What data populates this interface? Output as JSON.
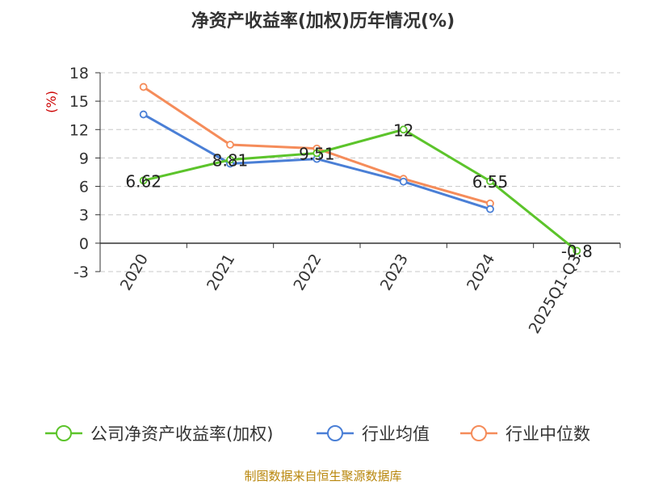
{
  "chart_data": {
    "type": "line",
    "title": "净资产收益率(加权)历年情况(%)",
    "ylabel": "(%)",
    "categories": [
      "2020",
      "2021",
      "2022",
      "2023",
      "2024",
      "2025Q1-Q3"
    ],
    "yticks": [
      "18",
      "15",
      "12",
      "9",
      "6",
      "3",
      "0",
      "-3"
    ],
    "ylim": [
      -3,
      18
    ],
    "grid": true,
    "legend_position": "bottom",
    "series": [
      {
        "name": "公司净资产收益率(加权)",
        "color": "#5cc42b",
        "values": [
          6.62,
          8.81,
          9.51,
          12,
          6.55,
          -0.8
        ],
        "labels": [
          "6.62",
          "8.81",
          "9.51",
          "12",
          "6.55",
          "-0.8"
        ]
      },
      {
        "name": "行业均值",
        "color": "#4a7fd6",
        "values": [
          13.6,
          8.4,
          8.9,
          6.5,
          3.6,
          null
        ]
      },
      {
        "name": "行业中位数",
        "color": "#f58c5a",
        "values": [
          16.5,
          10.4,
          10.0,
          6.8,
          4.2,
          null
        ]
      }
    ]
  },
  "source": "制图数据来自恒生聚源数据库"
}
